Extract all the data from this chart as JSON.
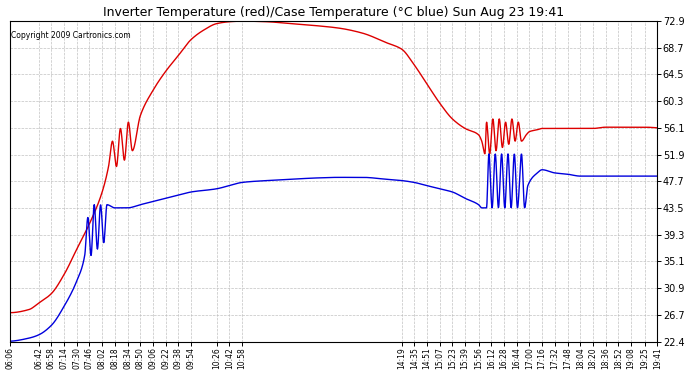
{
  "title": "Inverter Temperature (red)/Case Temperature (°C blue) Sun Aug 23 19:41",
  "copyright": "Copyright 2009 Cartronics.com",
  "yticks": [
    22.4,
    26.7,
    30.9,
    35.1,
    39.3,
    43.5,
    47.7,
    51.9,
    56.1,
    60.3,
    64.5,
    68.7,
    72.9
  ],
  "ylim": [
    22.4,
    72.9
  ],
  "background_color": "#ffffff",
  "plot_bg_color": "#ffffff",
  "grid_color": "#bbbbbb",
  "grid_style": "--",
  "red_color": "#dd0000",
  "blue_color": "#0000dd",
  "start_time": "06:06",
  "end_time": "19:41",
  "xtick_labels": [
    "06:06",
    "06:42",
    "06:58",
    "07:14",
    "07:30",
    "07:46",
    "08:02",
    "08:18",
    "08:34",
    "08:50",
    "09:06",
    "09:22",
    "09:38",
    "09:54",
    "10:26",
    "10:42",
    "10:58",
    "14:19",
    "14:35",
    "14:51",
    "15:07",
    "15:23",
    "15:39",
    "15:56",
    "16:12",
    "16:28",
    "16:44",
    "17:00",
    "17:16",
    "17:32",
    "17:48",
    "18:04",
    "18:20",
    "18:36",
    "18:52",
    "19:08",
    "19:25",
    "19:41"
  ]
}
